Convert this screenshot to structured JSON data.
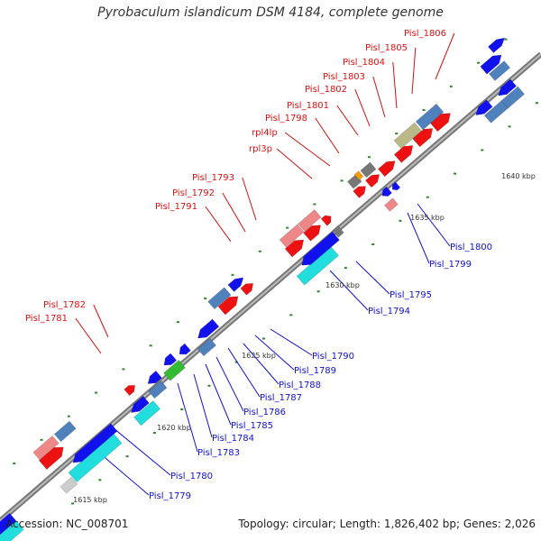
{
  "title": "Pyrobaculum islandicum DSM 4184, complete genome",
  "footer": {
    "accession": "Accession: NC_008701",
    "info": "Topology: circular; Length: 1,826,402 bp; Genes: 2,026"
  },
  "colors": {
    "backbone": "#777777",
    "dots": "#2a8a2a",
    "forward_label": "#dd1111",
    "reverse_label": "#1111cc",
    "leader": "#cc1111",
    "leader_reverse": "#1111cc"
  },
  "scale_ticks": [
    "1615 kbp",
    "1620 kbp",
    "1625 kbp",
    "1630 kbp",
    "1635 kbp",
    "1640 kbp"
  ],
  "forward_labels": [
    "Pisl_1806",
    "Pisl_1805",
    "Pisl_1804",
    "Pisl_1803",
    "Pisl_1802",
    "Pisl_1801",
    "Pisl_1798",
    "rpl4lp",
    "rpl3p",
    "Pisl_1793",
    "Pisl_1792",
    "Pisl_1791",
    "Pisl_1782",
    "Pisl_1781"
  ],
  "reverse_labels": [
    "Pisl_1800",
    "Pisl_1799",
    "Pisl_1795",
    "Pisl_1794",
    "Pisl_1790",
    "Pisl_1789",
    "Pisl_1788",
    "Pisl_1787",
    "Pisl_1786",
    "Pisl_1785",
    "Pisl_1784",
    "Pisl_1783",
    "Pisl_1780",
    "Pisl_1779"
  ]
}
